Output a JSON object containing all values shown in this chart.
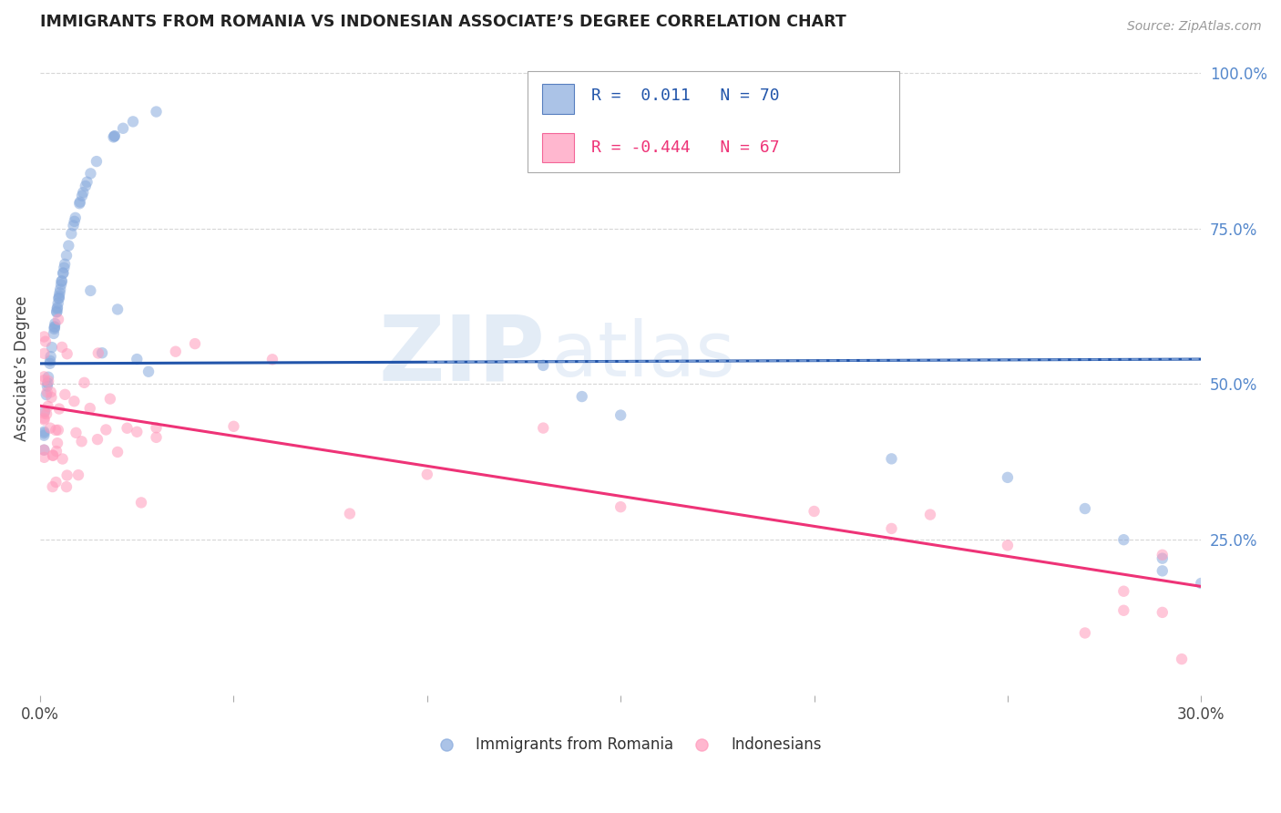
{
  "title": "IMMIGRANTS FROM ROMANIA VS INDONESIAN ASSOCIATE’S DEGREE CORRELATION CHART",
  "source": "Source: ZipAtlas.com",
  "ylabel": "Associate’s Degree",
  "xlim": [
    0.0,
    0.3
  ],
  "ylim": [
    0.0,
    1.05
  ],
  "blue_R": 0.011,
  "blue_N": 70,
  "pink_R": -0.444,
  "pink_N": 67,
  "blue_color": "#88AADD",
  "pink_color": "#FF99BB",
  "blue_line_color": "#2255AA",
  "pink_line_color": "#EE3377",
  "dashed_line_color": "#88AADD",
  "dashed_line_y": 0.535,
  "grid_color": "#CCCCCC",
  "title_color": "#222222",
  "right_label_color": "#5588CC",
  "watermark_text1": "ZIP",
  "watermark_text2": "atlas",
  "legend_label_blue": "Immigrants from Romania",
  "legend_label_pink": "Indonesians",
  "blue_line_x0": 0.0,
  "blue_line_x1": 0.3,
  "blue_line_y0": 0.533,
  "blue_line_y1": 0.54,
  "pink_line_x0": 0.0,
  "pink_line_x1": 0.3,
  "pink_line_y0": 0.465,
  "pink_line_y1": 0.175,
  "marker_size": 80,
  "marker_alpha": 0.55
}
